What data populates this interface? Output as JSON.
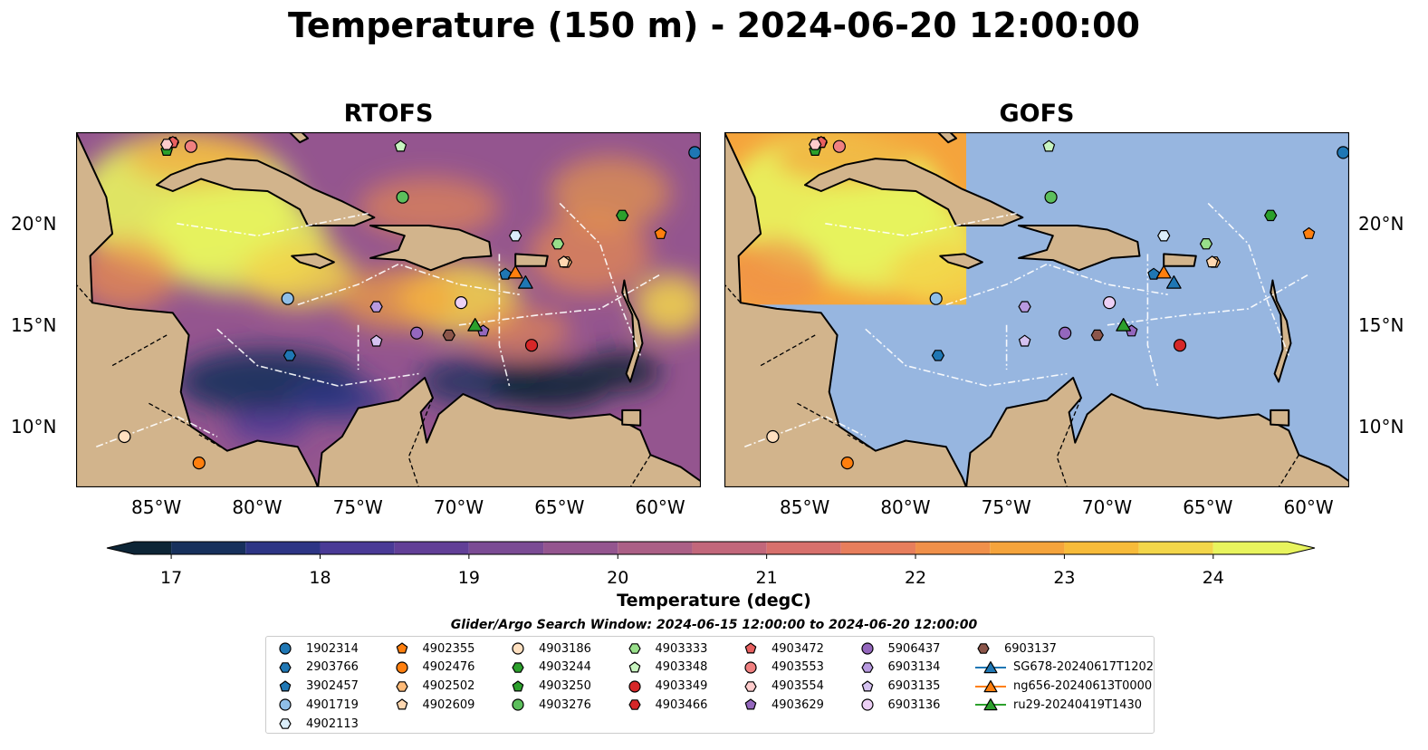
{
  "title": "Temperature (150 m) - 2024-06-20 12:00:00",
  "panels": [
    {
      "title": "RTOFS",
      "key": "rtofs"
    },
    {
      "title": "GOFS",
      "key": "gofs"
    }
  ],
  "axes": {
    "lon_ticks": [
      "85°W",
      "80°W",
      "75°W",
      "70°W",
      "65°W",
      "60°W"
    ],
    "lon_values": [
      -85,
      -80,
      -75,
      -70,
      -65,
      -60
    ],
    "lat_ticks": [
      "10°N",
      "15°N",
      "20°N"
    ],
    "lat_values": [
      10,
      15,
      20
    ],
    "lon_range": [
      -89,
      -58
    ],
    "lat_range": [
      7,
      24.5
    ]
  },
  "colorbar": {
    "label": "Temperature (degC)",
    "ticks": [
      "17",
      "18",
      "19",
      "20",
      "21",
      "22",
      "23",
      "24"
    ],
    "tick_values": [
      17,
      18,
      19,
      20,
      21,
      22,
      23,
      24
    ],
    "range": [
      16.75,
      24.5
    ],
    "colors": [
      "#0d2536",
      "#17305c",
      "#2d3585",
      "#4a3a96",
      "#623f97",
      "#7b4b94",
      "#94558f",
      "#ab5f86",
      "#c2677b",
      "#d7706c",
      "#e77e5c",
      "#f0904a",
      "#f5a43c",
      "#f7bb3a",
      "#f3d64a",
      "#e8f45e"
    ],
    "extend": "both"
  },
  "search_window": "Glider/Argo Search Window: 2024-06-15 12:00:00 to 2024-06-20 12:00:00",
  "colors": {
    "land": "#d2b48c",
    "ocean": "#97b6e0",
    "coast": "#000000",
    "eez": "#ffffff"
  },
  "chart_data": {
    "type": "heatmap",
    "variable": "Temperature",
    "depth": "150 m",
    "time": "2024-06-20 12:00:00",
    "units": "degC",
    "models": [
      "RTOFS",
      "GOFS"
    ],
    "warm_core_region_degC": 24.5,
    "gofs_coverage_lon_max": -77,
    "gofs_coverage_lat_min": 16,
    "floats": [
      {
        "id": "1902314",
        "marker": "circle",
        "color": "#1f77b4",
        "lon": -58.3,
        "lat": 23.5
      },
      {
        "id": "2903766",
        "marker": "hexagon",
        "color": "#1f77b4",
        "lon": -78.4,
        "lat": 13.5
      },
      {
        "id": "3902457",
        "marker": "pentagon",
        "color": "#1f77b4",
        "lon": -67.7,
        "lat": 17.5
      },
      {
        "id": "4901719",
        "marker": "circle",
        "color": "#8fbfe8",
        "lon": -78.5,
        "lat": 16.3
      },
      {
        "id": "4902113",
        "marker": "hexagon",
        "color": "#dbeefa",
        "lon": -67.2,
        "lat": 19.4
      },
      {
        "id": "4902355",
        "marker": "pentagon",
        "color": "#ff7f0e",
        "lon": -60.0,
        "lat": 19.5
      },
      {
        "id": "4902476",
        "marker": "circle",
        "color": "#ff7f0e",
        "lon": -82.9,
        "lat": 8.2
      },
      {
        "id": "4902502",
        "marker": "hexagon",
        "color": "#ffbb78",
        "lon": -64.7,
        "lat": 18.1
      },
      {
        "id": "4902609",
        "marker": "pentagon",
        "color": "#ffd8b1",
        "lon": -64.8,
        "lat": 18.1
      },
      {
        "id": "4903186",
        "marker": "circle",
        "color": "#ffe0c0",
        "lon": -86.6,
        "lat": 9.5
      },
      {
        "id": "4903244",
        "marker": "hexagon",
        "color": "#2ca02c",
        "lon": -61.9,
        "lat": 20.4
      },
      {
        "id": "4903250",
        "marker": "pentagon",
        "color": "#2ca02c",
        "lon": -84.5,
        "lat": 23.6
      },
      {
        "id": "4903276",
        "marker": "circle",
        "color": "#5cbf5c",
        "lon": -72.8,
        "lat": 21.3
      },
      {
        "id": "4903333",
        "marker": "hexagon",
        "color": "#98df8a",
        "lon": -65.1,
        "lat": 19.0
      },
      {
        "id": "4903348",
        "marker": "pentagon",
        "color": "#c8f5c0",
        "lon": -72.9,
        "lat": 23.8
      },
      {
        "id": "4903349",
        "marker": "circle",
        "color": "#d62728",
        "lon": -66.4,
        "lat": 14.0
      },
      {
        "id": "4903466",
        "marker": "hexagon",
        "color": "#d62728",
        "lon": -84.2,
        "lat": 24.0
      },
      {
        "id": "4903472",
        "marker": "pentagon",
        "color": "#e86060",
        "lon": -84.2,
        "lat": 24.0
      },
      {
        "id": "4903553",
        "marker": "circle",
        "color": "#f08080",
        "lon": -83.3,
        "lat": 23.8
      },
      {
        "id": "4903554",
        "marker": "hexagon",
        "color": "#ffcccc",
        "lon": -84.5,
        "lat": 23.9
      },
      {
        "id": "4903629",
        "marker": "pentagon",
        "color": "#9467bd",
        "lon": -68.8,
        "lat": 14.7
      },
      {
        "id": "5906437",
        "marker": "circle",
        "color": "#9467bd",
        "lon": -72.1,
        "lat": 14.6
      },
      {
        "id": "6903134",
        "marker": "hexagon",
        "color": "#b89ae0",
        "lon": -74.1,
        "lat": 15.9
      },
      {
        "id": "6903135",
        "marker": "pentagon",
        "color": "#d5c2f0",
        "lon": -74.1,
        "lat": 14.2
      },
      {
        "id": "6903136",
        "marker": "circle",
        "color": "#ecd0f5",
        "lon": -69.9,
        "lat": 16.1
      },
      {
        "id": "6903137",
        "marker": "hexagon",
        "color": "#8c564b",
        "lon": -70.5,
        "lat": 14.5
      },
      {
        "id": "SG678-20240617T1202",
        "marker": "triangle",
        "color": "#1f77b4",
        "lon": -66.7,
        "lat": 17.1
      },
      {
        "id": "ng656-20240613T0000",
        "marker": "triangle",
        "color": "#ff7f0e",
        "lon": -67.2,
        "lat": 17.6
      },
      {
        "id": "ru29-20240419T1430",
        "marker": "triangle",
        "color": "#2ca02c",
        "lon": -69.2,
        "lat": 15.0
      }
    ]
  }
}
